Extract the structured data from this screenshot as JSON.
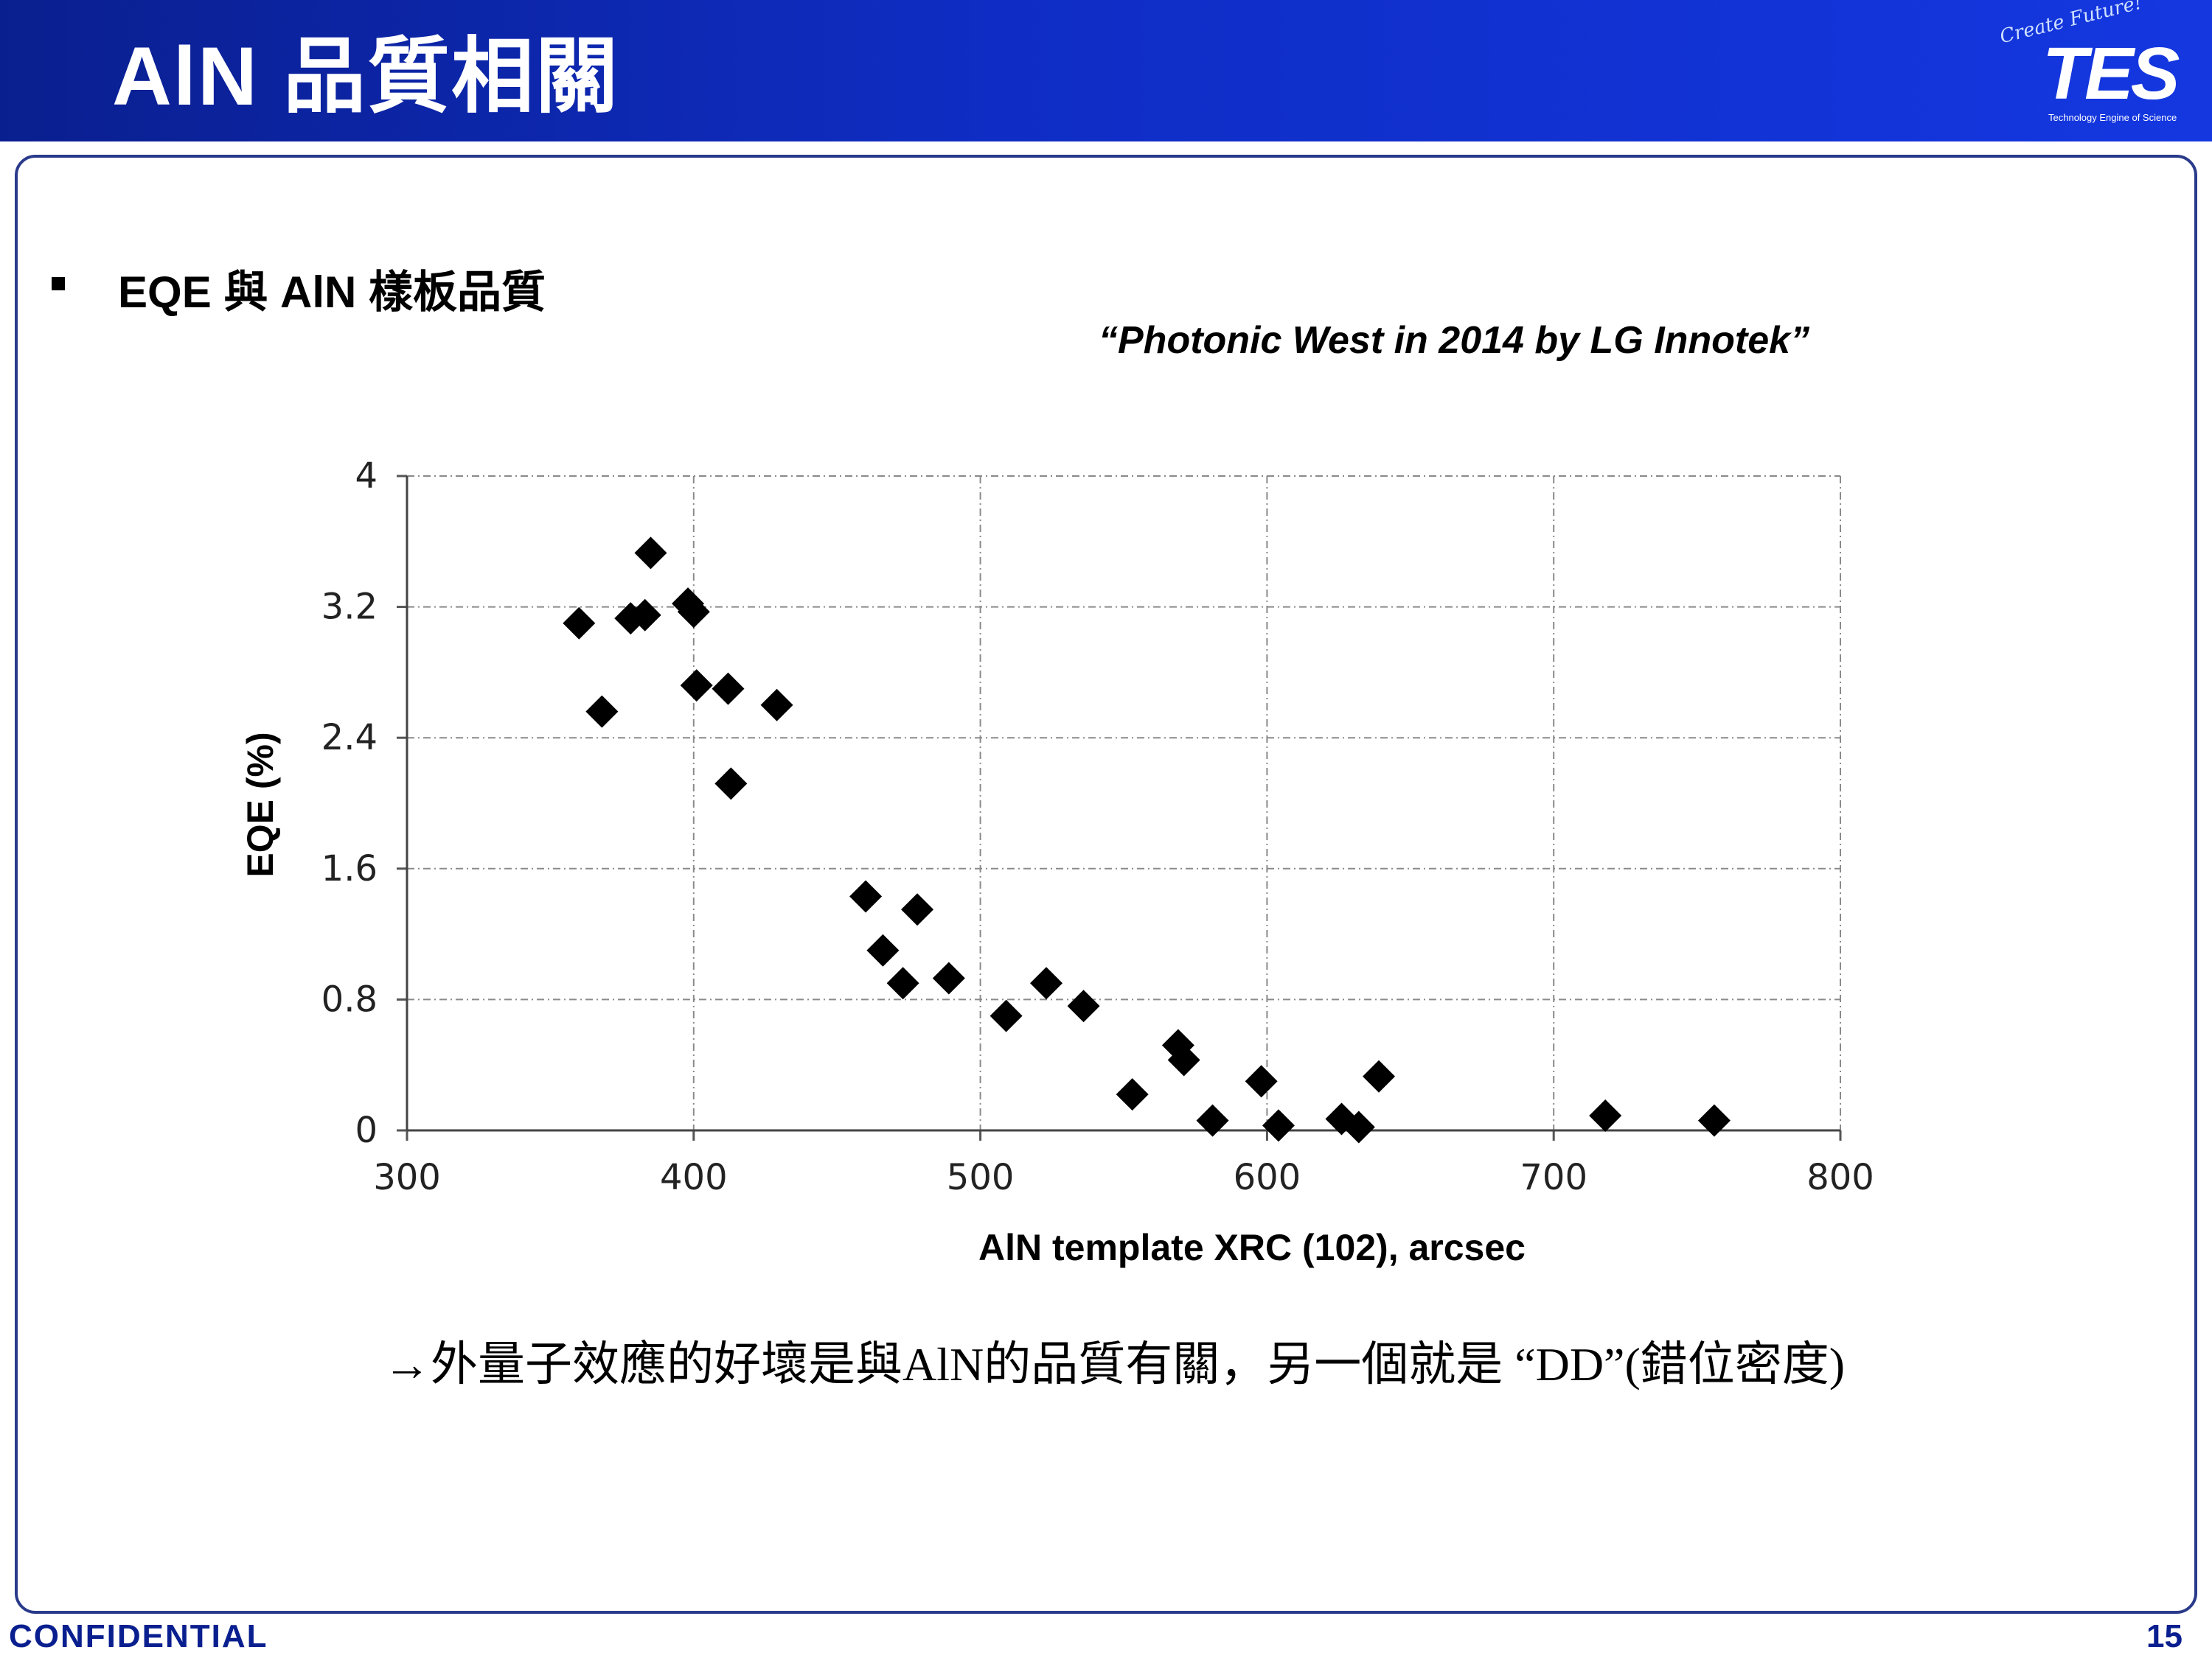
{
  "header": {
    "title": "AlN 品質相關"
  },
  "logo": {
    "script_text": "Create Future!",
    "mark": "TES",
    "tagline": "Technology Engine of Science"
  },
  "bullet": {
    "text": "EQE 與 AlN 樣板品質"
  },
  "source_note": "“Photonic West in 2014 by LG Innotek”",
  "conclusion": "→外量子效應的好壞是與AlN的品質有關，另一個就是 “DD”(錯位密度)",
  "footer": {
    "left": "CONFIDENTIAL",
    "page": "15"
  },
  "colors": {
    "header_blue": "#0f2dc4",
    "footer_blue": "#0a1f8f",
    "marker": "#000000"
  },
  "chart_data": {
    "type": "scatter",
    "title": "",
    "xlabel": "AlN template XRC (102), arcsec",
    "ylabel": "EQE (%)",
    "xlim": [
      300,
      800
    ],
    "ylim": [
      0,
      4
    ],
    "xticks": [
      "300",
      "400",
      "500",
      "600",
      "700",
      "800"
    ],
    "yticks": [
      "0",
      "0.8",
      "1.6",
      "2.4",
      "3.2",
      "4"
    ],
    "grid": true,
    "marker": "diamond",
    "points": [
      {
        "x": 360,
        "y": 3.1
      },
      {
        "x": 368,
        "y": 2.56
      },
      {
        "x": 378,
        "y": 3.13
      },
      {
        "x": 383,
        "y": 3.15
      },
      {
        "x": 385,
        "y": 3.53
      },
      {
        "x": 398,
        "y": 3.22
      },
      {
        "x": 400,
        "y": 3.17
      },
      {
        "x": 401,
        "y": 2.72
      },
      {
        "x": 412,
        "y": 2.7
      },
      {
        "x": 413,
        "y": 2.12
      },
      {
        "x": 429,
        "y": 2.6
      },
      {
        "x": 460,
        "y": 1.43
      },
      {
        "x": 466,
        "y": 1.1
      },
      {
        "x": 473,
        "y": 0.9
      },
      {
        "x": 478,
        "y": 1.35
      },
      {
        "x": 489,
        "y": 0.93
      },
      {
        "x": 509,
        "y": 0.7
      },
      {
        "x": 523,
        "y": 0.9
      },
      {
        "x": 536,
        "y": 0.76
      },
      {
        "x": 553,
        "y": 0.22
      },
      {
        "x": 569,
        "y": 0.52
      },
      {
        "x": 571,
        "y": 0.43
      },
      {
        "x": 581,
        "y": 0.06
      },
      {
        "x": 598,
        "y": 0.3
      },
      {
        "x": 604,
        "y": 0.03
      },
      {
        "x": 626,
        "y": 0.07
      },
      {
        "x": 632,
        "y": 0.02
      },
      {
        "x": 639,
        "y": 0.33
      },
      {
        "x": 718,
        "y": 0.09
      },
      {
        "x": 756,
        "y": 0.06
      }
    ]
  }
}
